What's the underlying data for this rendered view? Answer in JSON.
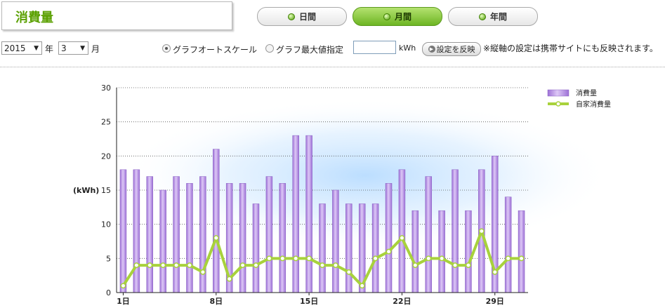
{
  "header": {
    "title": "消費量"
  },
  "tabs": [
    {
      "label": "日間",
      "active": false
    },
    {
      "label": "月間",
      "active": true
    },
    {
      "label": "年間",
      "active": false
    }
  ],
  "controls": {
    "year_value": "2015",
    "year_suffix": "年",
    "month_value": "3",
    "month_suffix": "月",
    "radio_auto_label": "グラフオートスケール",
    "radio_max_label": "グラフ最大値指定",
    "kwh_value": "",
    "kwh_unit": "kWh",
    "apply_label": "設定を反映",
    "note": "※縦軸の設定は携帯サイトにも反映されます。"
  },
  "colors": {
    "bar": "#b58fe0",
    "line": "#a8d23c",
    "accent": "#5aa000"
  },
  "chart_data": {
    "type": "bar",
    "ylabel": "(kWh)",
    "ylim": [
      0,
      30
    ],
    "yticks": [
      0,
      5,
      10,
      15,
      20,
      25,
      30
    ],
    "grid": true,
    "legend_position": "top-right",
    "x": [
      1,
      2,
      3,
      4,
      5,
      6,
      7,
      8,
      9,
      10,
      11,
      12,
      13,
      14,
      15,
      16,
      17,
      18,
      19,
      20,
      21,
      22,
      23,
      24,
      25,
      26,
      27,
      28,
      29,
      30,
      31
    ],
    "xtick_labels": [
      {
        "day": 1,
        "label": "1日"
      },
      {
        "day": 8,
        "label": "8日"
      },
      {
        "day": 15,
        "label": "15日"
      },
      {
        "day": 22,
        "label": "22日"
      },
      {
        "day": 29,
        "label": "29日"
      }
    ],
    "series": [
      {
        "name": "消費量",
        "kind": "bar",
        "values": [
          18,
          18,
          17,
          15,
          17,
          16,
          17,
          21,
          16,
          16,
          13,
          17,
          16,
          23,
          23,
          13,
          15,
          13,
          13,
          13,
          16,
          18,
          12,
          17,
          12,
          18,
          12,
          18,
          20,
          14,
          12
        ]
      },
      {
        "name": "自家消費量",
        "kind": "line",
        "values": [
          1,
          4,
          4,
          4,
          4,
          4,
          3,
          8,
          2,
          4,
          4,
          5,
          5,
          5,
          5,
          4,
          4,
          3,
          1,
          5,
          6,
          8,
          4,
          5,
          5,
          4,
          4,
          9,
          3,
          5,
          5
        ]
      }
    ]
  }
}
